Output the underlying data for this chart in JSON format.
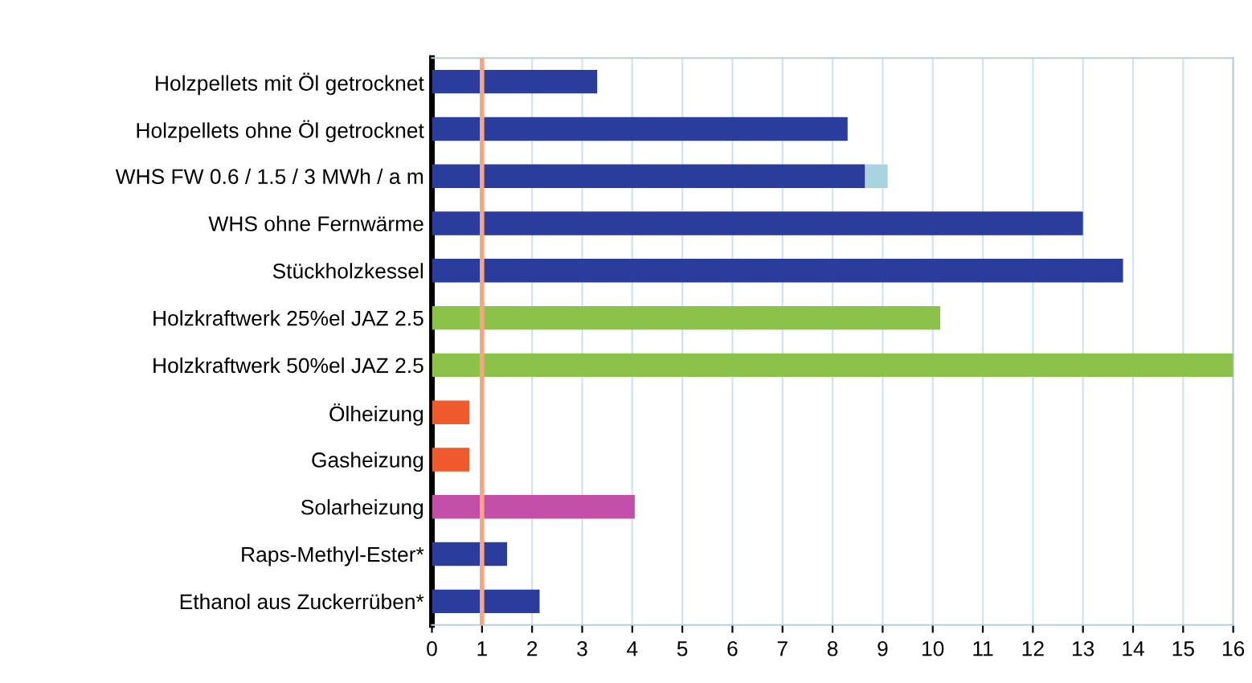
{
  "chart_data": {
    "type": "bar",
    "orientation": "horizontal",
    "stacked": true,
    "categories": [
      "Holzpellets mit Öl getrocknet",
      "Holzpellets ohne Öl getrocknet",
      "WHS FW 0.6 / 1.5 / 3 MWh / a m",
      "WHS ohne Fernwärme",
      "Stückholzkessel",
      "Holzkraftwerk 25%el JAZ 2.5",
      "Holzkraftwerk 50%el JAZ 2.5",
      "Ölheizung",
      "Gasheizung",
      "Solarheizung",
      "Raps-Methyl-Ester*",
      "Ethanol aus Zuckerrüben*"
    ],
    "series": [
      {
        "values": [
          3.3,
          8.3,
          8.65,
          13.0,
          13.8,
          10.15,
          16.0,
          0.75,
          0.75,
          4.05,
          1.5,
          2.15
        ],
        "colors": [
          "#2b3d9c",
          "#2b3d9c",
          "#2b3d9c",
          "#2b3d9c",
          "#2b3d9c",
          "#8bc34a",
          "#8bc34a",
          "#ee5a2c",
          "#ee5a2c",
          "#c44fa8",
          "#2b3d9c",
          "#2b3d9c"
        ]
      },
      {
        "values": [
          null,
          null,
          0.45,
          null,
          null,
          null,
          null,
          null,
          null,
          null,
          null,
          null
        ],
        "color": "#a8d4e0"
      }
    ],
    "xlim": [
      0,
      16
    ],
    "xticks": [
      0,
      1,
      2,
      3,
      4,
      5,
      6,
      7,
      8,
      9,
      10,
      11,
      12,
      13,
      14,
      15,
      16
    ],
    "ref_lines": [
      {
        "axis": "x",
        "value": 1,
        "color": "#f4a582"
      }
    ],
    "grid": "x"
  }
}
